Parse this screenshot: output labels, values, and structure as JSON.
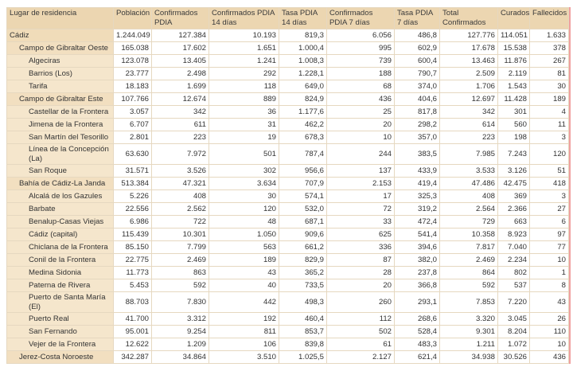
{
  "table": {
    "header": [
      "Lugar de residencia",
      "Población",
      "Confirmados PDIA",
      "Confirmados PDIA 14 días",
      "Tasa PDIA 14 días",
      "Confirmados PDIA 7 días",
      "Tasa PDIA 7 días",
      "Total Confirmados",
      "Curados",
      "Fallecidos"
    ],
    "rows": [
      {
        "level": 0,
        "cells": [
          "Cádiz",
          "1.244.049",
          "127.384",
          "10.193",
          "819,3",
          "6.056",
          "486,8",
          "127.776",
          "114.051",
          "1.633"
        ]
      },
      {
        "level": 1,
        "cells": [
          "Campo de Gibraltar Oeste",
          "165.038",
          "17.602",
          "1.651",
          "1.000,4",
          "995",
          "602,9",
          "17.678",
          "15.538",
          "378"
        ]
      },
      {
        "level": 2,
        "cells": [
          "Algeciras",
          "123.078",
          "13.405",
          "1.241",
          "1.008,3",
          "739",
          "600,4",
          "13.463",
          "11.876",
          "267"
        ]
      },
      {
        "level": 2,
        "cells": [
          "Barrios (Los)",
          "23.777",
          "2.498",
          "292",
          "1.228,1",
          "188",
          "790,7",
          "2.509",
          "2.119",
          "81"
        ]
      },
      {
        "level": 2,
        "cells": [
          "Tarifa",
          "18.183",
          "1.699",
          "118",
          "649,0",
          "68",
          "374,0",
          "1.706",
          "1.543",
          "30"
        ]
      },
      {
        "level": 1,
        "cells": [
          "Campo de Gibraltar Este",
          "107.766",
          "12.674",
          "889",
          "824,9",
          "436",
          "404,6",
          "12.697",
          "11.428",
          "189"
        ]
      },
      {
        "level": 2,
        "cells": [
          "Castellar de la Frontera",
          "3.057",
          "342",
          "36",
          "1.177,6",
          "25",
          "817,8",
          "342",
          "301",
          "4"
        ]
      },
      {
        "level": 2,
        "cells": [
          "Jimena de la Frontera",
          "6.707",
          "611",
          "31",
          "462,2",
          "20",
          "298,2",
          "614",
          "560",
          "11"
        ]
      },
      {
        "level": 2,
        "cells": [
          "San Martín del Tesorillo",
          "2.801",
          "223",
          "19",
          "678,3",
          "10",
          "357,0",
          "223",
          "198",
          "3"
        ]
      },
      {
        "level": 2,
        "cells": [
          "Línea de la Concepción (La)",
          "63.630",
          "7.972",
          "501",
          "787,4",
          "244",
          "383,5",
          "7.985",
          "7.243",
          "120"
        ]
      },
      {
        "level": 2,
        "cells": [
          "San Roque",
          "31.571",
          "3.526",
          "302",
          "956,6",
          "137",
          "433,9",
          "3.533",
          "3.126",
          "51"
        ]
      },
      {
        "level": 1,
        "cells": [
          "Bahía de Cádiz-La Janda",
          "513.384",
          "47.321",
          "3.634",
          "707,9",
          "2.153",
          "419,4",
          "47.486",
          "42.475",
          "418"
        ]
      },
      {
        "level": 2,
        "cells": [
          "Alcalá de los Gazules",
          "5.226",
          "408",
          "30",
          "574,1",
          "17",
          "325,3",
          "408",
          "369",
          "3"
        ]
      },
      {
        "level": 2,
        "cells": [
          "Barbate",
          "22.556",
          "2.562",
          "120",
          "532,0",
          "72",
          "319,2",
          "2.564",
          "2.366",
          "27"
        ]
      },
      {
        "level": 2,
        "cells": [
          "Benalup-Casas Viejas",
          "6.986",
          "722",
          "48",
          "687,1",
          "33",
          "472,4",
          "729",
          "663",
          "6"
        ]
      },
      {
        "level": 2,
        "cells": [
          "Cádiz (capital)",
          "115.439",
          "10.301",
          "1.050",
          "909,6",
          "625",
          "541,4",
          "10.358",
          "8.923",
          "97"
        ]
      },
      {
        "level": 2,
        "cells": [
          "Chiclana de la Frontera",
          "85.150",
          "7.799",
          "563",
          "661,2",
          "336",
          "394,6",
          "7.817",
          "7.040",
          "77"
        ]
      },
      {
        "level": 2,
        "cells": [
          "Conil de la Frontera",
          "22.775",
          "2.469",
          "189",
          "829,9",
          "87",
          "382,0",
          "2.469",
          "2.234",
          "10"
        ]
      },
      {
        "level": 2,
        "cells": [
          "Medina Sidonia",
          "11.773",
          "863",
          "43",
          "365,2",
          "28",
          "237,8",
          "864",
          "802",
          "1"
        ]
      },
      {
        "level": 2,
        "cells": [
          "Paterna de Rivera",
          "5.453",
          "592",
          "40",
          "733,5",
          "20",
          "366,8",
          "592",
          "537",
          "8"
        ]
      },
      {
        "level": 2,
        "cells": [
          "Puerto de Santa María (El)",
          "88.703",
          "7.830",
          "442",
          "498,3",
          "260",
          "293,1",
          "7.853",
          "7.220",
          "43"
        ]
      },
      {
        "level": 2,
        "cells": [
          "Puerto Real",
          "41.700",
          "3.312",
          "192",
          "460,4",
          "112",
          "268,6",
          "3.320",
          "3.045",
          "26"
        ]
      },
      {
        "level": 2,
        "cells": [
          "San Fernando",
          "95.001",
          "9.254",
          "811",
          "853,7",
          "502",
          "528,4",
          "9.301",
          "8.204",
          "110"
        ]
      },
      {
        "level": 2,
        "cells": [
          "Vejer de la Frontera",
          "12.622",
          "1.209",
          "106",
          "839,8",
          "61",
          "483,3",
          "1.211",
          "1.072",
          "10"
        ]
      },
      {
        "level": 1,
        "cells": [
          "Jerez-Costa Noroeste",
          "342.287",
          "34.864",
          "3.510",
          "1.025,5",
          "2.127",
          "621,4",
          "34.938",
          "30.526",
          "436"
        ]
      }
    ]
  }
}
